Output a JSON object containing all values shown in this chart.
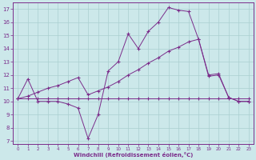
{
  "xlabel": "Windchill (Refroidissement éolien,°C)",
  "xlim": [
    -0.5,
    23.5
  ],
  "ylim": [
    6.8,
    17.5
  ],
  "xticks": [
    0,
    1,
    2,
    3,
    4,
    5,
    6,
    7,
    8,
    9,
    10,
    11,
    12,
    13,
    14,
    15,
    16,
    17,
    18,
    19,
    20,
    21,
    22,
    23
  ],
  "yticks": [
    7,
    8,
    9,
    10,
    11,
    12,
    13,
    14,
    15,
    16,
    17
  ],
  "bg_color": "#cce8ea",
  "line_color": "#7b2d8b",
  "grid_color": "#aacfcf",
  "line1_x": [
    0,
    1,
    2,
    3,
    4,
    5,
    6,
    7,
    8,
    9,
    10,
    11,
    12,
    13,
    14,
    15,
    16,
    17,
    18,
    19,
    20,
    21,
    22,
    23
  ],
  "line1_y": [
    10.2,
    11.7,
    10.0,
    10.0,
    10.0,
    9.8,
    9.5,
    7.2,
    9.0,
    12.3,
    13.0,
    15.1,
    14.0,
    15.3,
    16.0,
    17.1,
    16.9,
    16.8,
    14.7,
    12.0,
    12.1,
    10.3,
    10.0,
    10.0
  ],
  "line2_x": [
    0,
    1,
    2,
    3,
    4,
    5,
    6,
    7,
    8,
    9,
    10,
    11,
    12,
    13,
    14,
    15,
    16,
    17,
    18,
    19,
    20,
    21,
    22,
    23
  ],
  "line2_y": [
    10.2,
    10.4,
    10.7,
    11.0,
    11.2,
    11.5,
    11.8,
    10.5,
    10.8,
    11.1,
    11.5,
    12.0,
    12.4,
    12.9,
    13.3,
    13.8,
    14.1,
    14.5,
    14.7,
    11.9,
    12.0,
    10.3,
    10.0,
    10.0
  ],
  "line3_x": [
    0,
    1,
    2,
    3,
    4,
    5,
    6,
    7,
    8,
    9,
    10,
    11,
    12,
    13,
    14,
    15,
    16,
    17,
    18,
    19,
    20,
    21,
    22,
    23
  ],
  "line3_y": [
    10.2,
    10.2,
    10.2,
    10.2,
    10.2,
    10.2,
    10.2,
    10.2,
    10.2,
    10.2,
    10.2,
    10.2,
    10.2,
    10.2,
    10.2,
    10.2,
    10.2,
    10.2,
    10.2,
    10.2,
    10.2,
    10.2,
    10.2,
    10.2
  ]
}
